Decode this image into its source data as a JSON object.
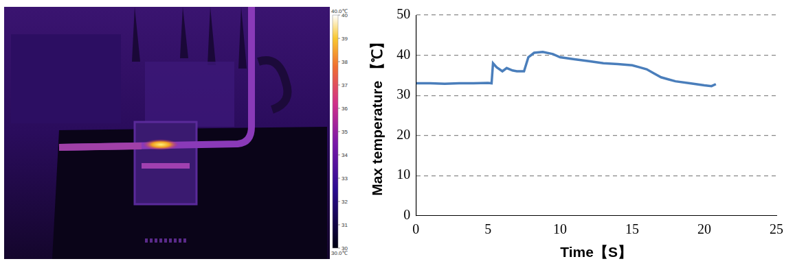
{
  "image": {
    "colorbar": {
      "range": [
        30,
        40
      ],
      "ticks": [
        30,
        31,
        32,
        33,
        34,
        35,
        36,
        37,
        38,
        39,
        40
      ],
      "top_label": "40.0℃",
      "bottom_label": "30.0℃"
    }
  },
  "chart_data": {
    "type": "line",
    "x_label": "Time【S】",
    "y_label": "Max temperature 【℃】",
    "x": [
      0,
      1,
      2,
      3,
      4,
      5,
      5.25,
      5.35,
      5.6,
      6.0,
      6.3,
      6.7,
      7.0,
      7.5,
      7.8,
      8.2,
      8.8,
      9.5,
      10,
      11,
      12,
      13,
      14,
      15,
      15.5,
      16,
      16.5,
      17,
      17.5,
      18,
      19,
      20,
      20.5,
      20.8
    ],
    "values": [
      33,
      33,
      32.9,
      33,
      33,
      33.1,
      33,
      38,
      37,
      36,
      36.8,
      36.2,
      36,
      36,
      39.5,
      40.6,
      40.8,
      40.3,
      39.5,
      39,
      38.5,
      38,
      37.8,
      37.5,
      37,
      36.5,
      35.5,
      34.5,
      34,
      33.5,
      33,
      32.5,
      32.3,
      32.8
    ],
    "color": "#4a7ebb",
    "xlim": [
      0,
      25
    ],
    "xticks": [
      0,
      5,
      10,
      15,
      20,
      25
    ],
    "ylim": [
      0,
      50
    ],
    "yticks": [
      0,
      10,
      20,
      30,
      40,
      50
    ],
    "grid": "y"
  }
}
